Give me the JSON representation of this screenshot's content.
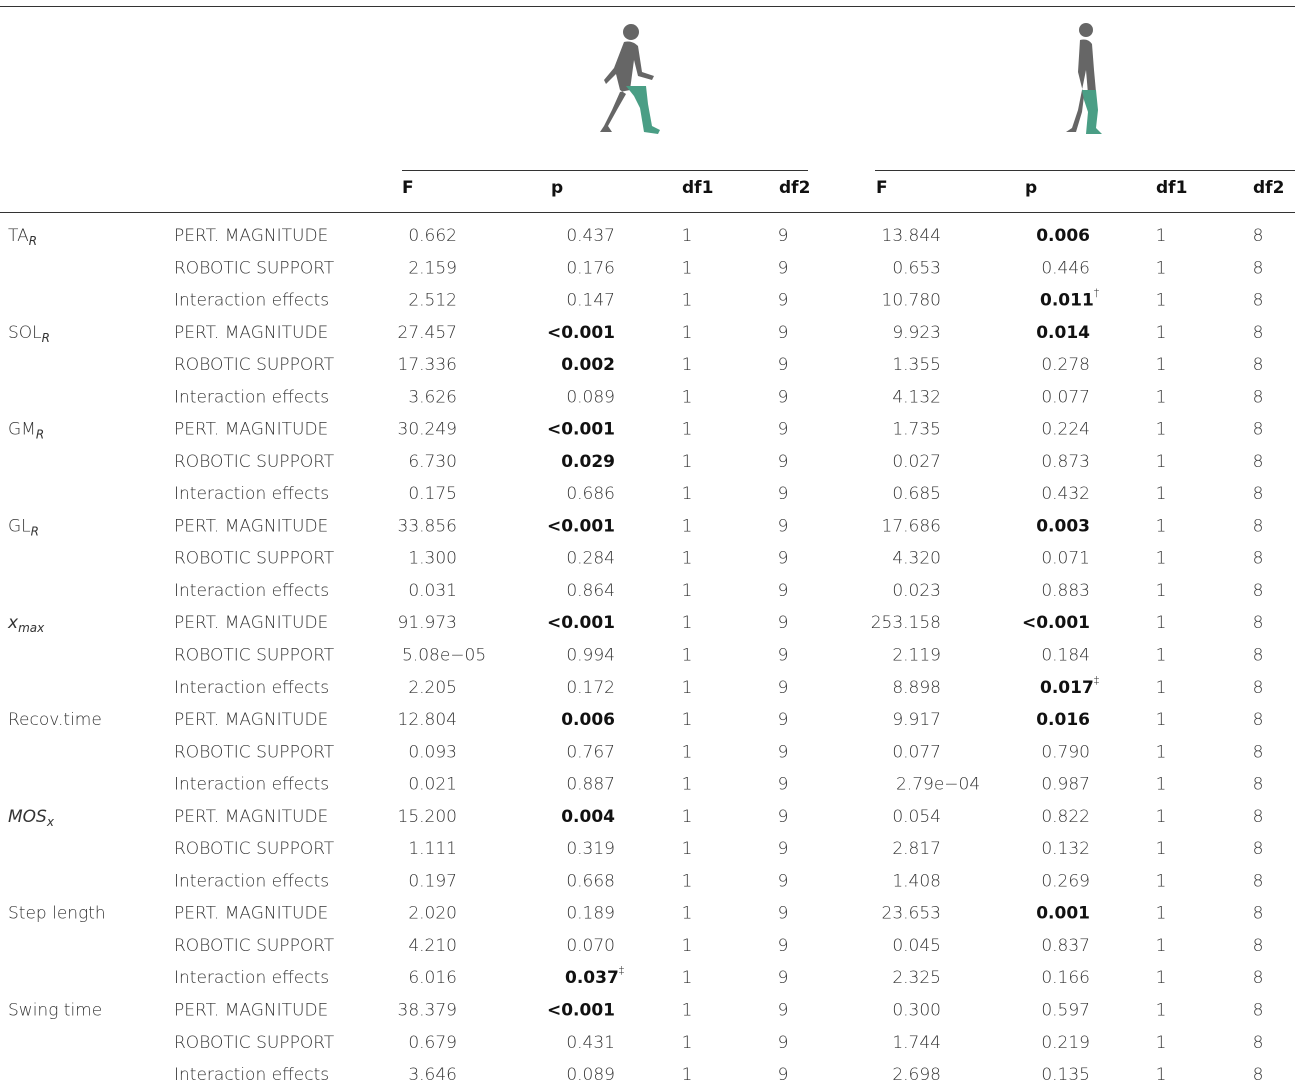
{
  "table": {
    "header": {
      "left": [
        "F",
        "p",
        "df1",
        "df2"
      ],
      "right": [
        "F",
        "p",
        "df1",
        "df2"
      ]
    },
    "groups": [
      {
        "measure": {
          "main": "TA",
          "sub": "R"
        },
        "rows": [
          {
            "factor": "PERT. MAGNITUDE",
            "cells": [
              "0.662",
              "0.437",
              "1",
              "9",
              "13.844",
              {
                "text": "0.006",
                "bold": true
              },
              "1",
              "8"
            ]
          },
          {
            "factor": "ROBOTIC SUPPORT",
            "cells": [
              "2.159",
              "0.176",
              "1",
              "9",
              "0.653",
              "0.446",
              "1",
              "8"
            ]
          },
          {
            "factor": "Interaction effects",
            "cells": [
              "2.512",
              "0.147",
              "1",
              "9",
              "10.780",
              {
                "text": "0.011",
                "bold": true,
                "sup": "†"
              },
              "1",
              "8"
            ]
          }
        ]
      },
      {
        "measure": {
          "main": "SOL",
          "sub": "R"
        },
        "rows": [
          {
            "factor": "PERT. MAGNITUDE",
            "cells": [
              "27.457",
              {
                "prefix": "<",
                "text": "0.001",
                "bold": true
              },
              "1",
              "9",
              "9.923",
              {
                "text": "0.014",
                "bold": true
              },
              "1",
              "8"
            ]
          },
          {
            "factor": "ROBOTIC SUPPORT",
            "cells": [
              "17.336",
              {
                "text": "0.002",
                "bold": true
              },
              "1",
              "9",
              "1.355",
              "0.278",
              "1",
              "8"
            ]
          },
          {
            "factor": "Interaction effects",
            "cells": [
              "3.626",
              "0.089",
              "1",
              "9",
              "4.132",
              "0.077",
              "1",
              "8"
            ]
          }
        ]
      },
      {
        "measure": {
          "main": "GM",
          "sub": "R"
        },
        "rows": [
          {
            "factor": "PERT. MAGNITUDE",
            "cells": [
              "30.249",
              {
                "prefix": "<",
                "text": "0.001",
                "bold": true
              },
              "1",
              "9",
              "1.735",
              "0.224",
              "1",
              "8"
            ]
          },
          {
            "factor": "ROBOTIC SUPPORT",
            "cells": [
              "6.730",
              {
                "text": "0.029",
                "bold": true
              },
              "1",
              "9",
              "0.027",
              "0.873",
              "1",
              "8"
            ]
          },
          {
            "factor": "Interaction effects",
            "cells": [
              "0.175",
              "0.686",
              "1",
              "9",
              "0.685",
              "0.432",
              "1",
              "8"
            ]
          }
        ]
      },
      {
        "measure": {
          "main": "GL",
          "sub": "R"
        },
        "rows": [
          {
            "factor": "PERT. MAGNITUDE",
            "cells": [
              "33.856",
              {
                "prefix": "<",
                "text": "0.001",
                "bold": true
              },
              "1",
              "9",
              "17.686",
              {
                "text": "0.003",
                "bold": true
              },
              "1",
              "8"
            ]
          },
          {
            "factor": "ROBOTIC SUPPORT",
            "cells": [
              "1.300",
              "0.284",
              "1",
              "9",
              "4.320",
              "0.071",
              "1",
              "8"
            ]
          },
          {
            "factor": "Interaction effects",
            "cells": [
              "0.031",
              "0.864",
              "1",
              "9",
              "0.023",
              "0.883",
              "1",
              "8"
            ]
          }
        ]
      },
      {
        "measure": {
          "main": "x",
          "sub": "max",
          "italic": true
        },
        "rows": [
          {
            "factor": "PERT. MAGNITUDE",
            "cells": [
              "91.973",
              {
                "prefix": "<",
                "text": "0.001",
                "bold": true
              },
              "1",
              "9",
              "253.158",
              {
                "prefix": "<",
                "text": "0.001",
                "bold": true
              },
              "1",
              "8"
            ]
          },
          {
            "factor": "ROBOTIC SUPPORT",
            "cells": [
              "5.08e−05",
              "0.994",
              "1",
              "9",
              "2.119",
              "0.184",
              "1",
              "8"
            ]
          },
          {
            "factor": "Interaction effects",
            "cells": [
              "2.205",
              "0.172",
              "1",
              "9",
              "8.898",
              {
                "text": "0.017",
                "bold": true,
                "sup": "‡"
              },
              "1",
              "8"
            ]
          }
        ]
      },
      {
        "measure": {
          "main": "Recov.time"
        },
        "rows": [
          {
            "factor": "PERT. MAGNITUDE",
            "cells": [
              "12.804",
              {
                "text": "0.006",
                "bold": true
              },
              "1",
              "9",
              "9.917",
              {
                "text": "0.016",
                "bold": true
              },
              "1",
              "8"
            ]
          },
          {
            "factor": "ROBOTIC SUPPORT",
            "cells": [
              "0.093",
              "0.767",
              "1",
              "9",
              "0.077",
              "0.790",
              "1",
              "8"
            ]
          },
          {
            "factor": "Interaction effects",
            "cells": [
              "0.021",
              "0.887",
              "1",
              "9",
              "2.79e−04",
              "0.987",
              "1",
              "8"
            ]
          }
        ]
      },
      {
        "measure": {
          "main": "MOS",
          "sub": "x",
          "italic": true
        },
        "rows": [
          {
            "factor": "PERT. MAGNITUDE",
            "cells": [
              "15.200",
              {
                "text": "0.004",
                "bold": true
              },
              "1",
              "9",
              "0.054",
              "0.822",
              "1",
              "8"
            ]
          },
          {
            "factor": "ROBOTIC SUPPORT",
            "cells": [
              "1.111",
              "0.319",
              "1",
              "9",
              "2.817",
              "0.132",
              "1",
              "8"
            ]
          },
          {
            "factor": "Interaction effects",
            "cells": [
              "0.197",
              "0.668",
              "1",
              "9",
              "1.408",
              "0.269",
              "1",
              "8"
            ]
          }
        ]
      },
      {
        "measure": {
          "main": "Step length"
        },
        "rows": [
          {
            "factor": "PERT. MAGNITUDE",
            "cells": [
              "2.020",
              "0.189",
              "1",
              "9",
              "23.653",
              {
                "text": "0.001",
                "bold": true
              },
              "1",
              "8"
            ]
          },
          {
            "factor": "ROBOTIC SUPPORT",
            "cells": [
              "4.210",
              "0.070",
              "1",
              "9",
              "0.045",
              "0.837",
              "1",
              "8"
            ]
          },
          {
            "factor": "Interaction effects",
            "cells": [
              "6.016",
              {
                "text": "0.037",
                "bold": true,
                "sup": "‡"
              },
              "1",
              "9",
              "2.325",
              "0.166",
              "1",
              "8"
            ]
          }
        ]
      },
      {
        "measure": {
          "main": "Swing time"
        },
        "rows": [
          {
            "factor": "PERT. MAGNITUDE",
            "cells": [
              "38.379",
              {
                "prefix": "<",
                "text": "0.001",
                "bold": true
              },
              "1",
              "9",
              "0.300",
              "0.597",
              "1",
              "8"
            ]
          },
          {
            "factor": "ROBOTIC SUPPORT",
            "cells": [
              "0.679",
              "0.431",
              "1",
              "9",
              "1.744",
              "0.219",
              "1",
              "8"
            ]
          },
          {
            "factor": "Interaction effects",
            "cells": [
              "3.646",
              "0.089",
              "1",
              "9",
              "2.698",
              "0.135",
              "1",
              "8"
            ]
          }
        ]
      }
    ]
  }
}
